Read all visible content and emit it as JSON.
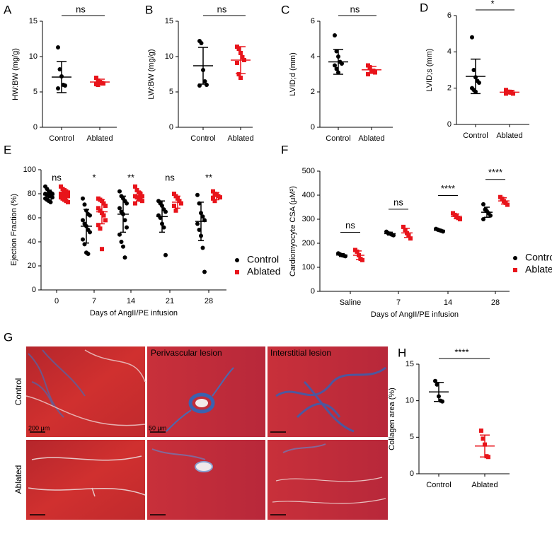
{
  "chart_data": [
    {
      "type": "dot",
      "label": "A",
      "ylabel": "HW:BW (mg/g)",
      "categories": [
        "Control",
        "Ablated"
      ],
      "ylim": [
        0,
        15
      ],
      "yticks": [
        0,
        5,
        10,
        15
      ],
      "annotation": "ns",
      "series": [
        {
          "color": "#000000",
          "marker": "circle",
          "values": [
            [
              11.3,
              8.2,
              7.2,
              6.0,
              5.9,
              5.5
            ],
            null
          ],
          "mean": [
            7.1,
            null
          ],
          "sd": [
            2.2,
            null
          ]
        },
        {
          "color": "#e8141b",
          "marker": "square",
          "values": [
            null,
            [
              7.0,
              6.6,
              6.4,
              6.3,
              6.2,
              6.1,
              6.0
            ]
          ],
          "mean": [
            null,
            6.4
          ],
          "sd": [
            null,
            0.4
          ]
        }
      ]
    },
    {
      "type": "dot",
      "label": "B",
      "ylabel": "LW:BW (mg/g)",
      "categories": [
        "Control",
        "Ablated"
      ],
      "ylim": [
        0,
        15
      ],
      "yticks": [
        0,
        5,
        10,
        15
      ],
      "annotation": "ns",
      "series": [
        {
          "color": "#000000",
          "marker": "circle",
          "values": [
            [
              12.2,
              11.9,
              8.1,
              6.5,
              6.0,
              5.9
            ],
            null
          ],
          "mean": [
            8.7,
            null
          ],
          "sd": [
            2.6,
            null
          ]
        },
        {
          "color": "#e8141b",
          "marker": "square",
          "values": [
            null,
            [
              11.4,
              11.1,
              10.5,
              9.9,
              9.5,
              9.1,
              7.5,
              7.0
            ]
          ],
          "mean": [
            null,
            9.5
          ],
          "sd": [
            null,
            1.9
          ]
        }
      ]
    },
    {
      "type": "dot",
      "label": "C",
      "ylabel": "LVID;d (mm)",
      "categories": [
        "Control",
        "Ablated"
      ],
      "ylim": [
        0,
        6
      ],
      "yticks": [
        0,
        2,
        4,
        6
      ],
      "annotation": "ns",
      "series": [
        {
          "color": "#000000",
          "marker": "circle",
          "values": [
            [
              5.2,
              4.3,
              4.0,
              3.7,
              3.6,
              3.5,
              3.3,
              3.1
            ],
            null
          ],
          "mean": [
            3.7,
            null
          ],
          "sd": [
            0.7,
            null
          ]
        },
        {
          "color": "#e8141b",
          "marker": "square",
          "values": [
            null,
            [
              3.5,
              3.4,
              3.2,
              3.2,
              3.1,
              3.0
            ]
          ],
          "mean": [
            null,
            3.25
          ],
          "sd": [
            null,
            0.2
          ]
        }
      ]
    },
    {
      "type": "dot",
      "label": "D",
      "ylabel": "LVID;s (mm)",
      "categories": [
        "Control",
        "Ablated"
      ],
      "ylim": [
        0,
        6
      ],
      "yticks": [
        0,
        2,
        4,
        6
      ],
      "annotation": "*",
      "series": [
        {
          "color": "#000000",
          "marker": "circle",
          "values": [
            [
              4.8,
              3.0,
              2.6,
              2.4,
              2.3,
              2.0,
              1.9,
              1.8
            ],
            null
          ],
          "mean": [
            2.65,
            null
          ],
          "sd": [
            0.95,
            null
          ]
        },
        {
          "color": "#e8141b",
          "marker": "square",
          "values": [
            null,
            [
              1.9,
              1.8,
              1.8,
              1.75,
              1.7,
              1.7
            ]
          ],
          "mean": [
            null,
            1.78
          ],
          "sd": [
            null,
            0.1
          ]
        }
      ]
    },
    {
      "type": "dot",
      "label": "E",
      "ylabel": "Ejection Fraction (%)",
      "xlabel": "Days of AngII/PE infusion",
      "categories": [
        "0",
        "7",
        "14",
        "21",
        "28"
      ],
      "ylim": [
        0,
        100
      ],
      "yticks": [
        0,
        20,
        40,
        60,
        80,
        100
      ],
      "legend": "right",
      "brackets": false,
      "annotations": [
        "ns",
        "*",
        "**",
        "ns",
        "**"
      ],
      "series": [
        {
          "name": "Control",
          "color": "#000000",
          "marker": "circle",
          "values": [
            [
              86,
              84,
              82,
              81,
              80,
              80,
              79,
              78,
              78,
              77,
              76,
              75,
              74,
              73
            ],
            [
              76,
              71,
              66,
              63,
              62,
              58,
              55,
              53,
              50,
              48,
              42,
              38,
              31,
              30
            ],
            [
              82,
              78,
              76,
              74,
              72,
              68,
              65,
              63,
              58,
              52,
              46,
              40,
              36,
              27
            ],
            [
              74,
              72,
              70,
              67,
              65,
              62,
              60,
              55,
              52,
              29
            ],
            [
              79,
              72,
              64,
              61,
              58,
              55,
              50,
              45,
              35,
              15
            ]
          ],
          "mean": [
            79,
            53,
            63,
            61,
            57
          ],
          "sd": [
            4,
            14,
            15,
            13,
            16
          ]
        },
        {
          "name": "Ablated",
          "color": "#e8141b",
          "marker": "square",
          "values": [
            [
              86,
              84,
              83,
              82,
              81,
              80,
              80,
              79,
              78,
              78,
              77,
              76,
              75,
              74,
              73
            ],
            [
              76,
              75,
              74,
              72,
              70,
              68,
              66,
              64,
              62,
              58,
              54,
              51,
              34
            ],
            [
              86,
              83,
              81,
              80,
              78,
              78,
              77,
              76,
              75,
              74,
              72
            ],
            [
              80,
              78,
              76,
              74,
              72,
              70,
              66
            ],
            [
              82,
              80,
              79,
              78,
              77,
              76,
              74
            ]
          ],
          "mean": [
            79,
            65,
            78,
            73,
            78
          ],
          "sd": [
            3,
            10,
            4,
            5,
            3
          ]
        }
      ]
    },
    {
      "type": "dot",
      "label": "F",
      "ylabel": "Cardiomyocyte CSA (μM²)",
      "xlabel": "Days of AngII/PE infusion",
      "categories": [
        "Saline",
        "7",
        "14",
        "28"
      ],
      "ylim": [
        0,
        500
      ],
      "yticks": [
        0,
        100,
        200,
        300,
        400,
        500
      ],
      "legend": "right",
      "brackets": true,
      "annotations": [
        "ns",
        "ns",
        "****",
        "****"
      ],
      "series": [
        {
          "name": "Control",
          "color": "#000000",
          "marker": "circle",
          "values": [
            [
              158,
              154,
              150,
              148,
              146
            ],
            [
              248,
              242,
              240,
              236,
              233
            ],
            [
              260,
              257,
              254,
              252,
              249
            ],
            [
              362,
              340,
              333,
              325,
              315,
              300
            ]
          ],
          "mean": [
            151,
            240,
            254,
            329
          ],
          "sd": [
            6,
            6,
            4,
            21
          ]
        },
        {
          "name": "Ablated",
          "color": "#e8141b",
          "marker": "square",
          "values": [
            [
              172,
              165,
              150,
              135,
              130
            ],
            [
              268,
              255,
              242,
              232,
              220
            ],
            [
              325,
              318,
              312,
              305,
              300
            ],
            [
              392,
              385,
              375,
              368,
              360
            ]
          ],
          "mean": [
            150,
            243,
            312,
            376
          ],
          "sd": [
            18,
            19,
            10,
            13
          ]
        }
      ]
    },
    {
      "type": "dot",
      "label": "H",
      "ylabel": "Collagen area (%)",
      "categories": [
        "Control",
        "Ablated"
      ],
      "ylim": [
        0,
        15
      ],
      "yticks": [
        0,
        5,
        10,
        15
      ],
      "annotation": "****",
      "series": [
        {
          "color": "#000000",
          "marker": "circle",
          "values": [
            [
              12.7,
              12.2,
              10.6,
              10.0,
              9.9
            ],
            null
          ],
          "mean": [
            11.2,
            null
          ],
          "sd": [
            1.3,
            null
          ]
        },
        {
          "color": "#e8141b",
          "marker": "square",
          "values": [
            null,
            [
              5.9,
              4.8,
              4.0,
              2.4,
              2.3
            ]
          ],
          "mean": [
            null,
            3.8
          ],
          "sd": [
            null,
            1.5
          ]
        }
      ]
    }
  ],
  "histology": {
    "label": "G",
    "rows": [
      "Control",
      "Ablated"
    ],
    "column_titles": [
      "Perivascular lesion",
      "Interstitial lesion"
    ],
    "scale_bars": [
      "200 μm",
      "50 μm"
    ]
  }
}
